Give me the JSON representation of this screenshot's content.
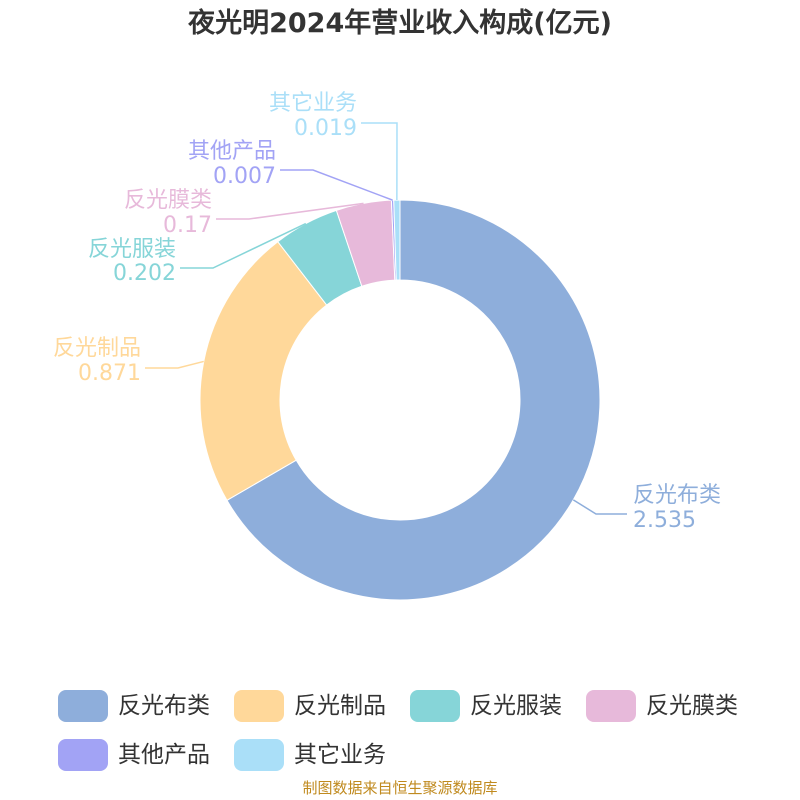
{
  "title": "夜光明2024年营业收入构成(亿元)",
  "source_note": "制图数据来自恒生聚源数据库",
  "chart_data": {
    "type": "pie",
    "title": "夜光明2024年营业收入构成(亿元)",
    "donut": true,
    "legend_position": "bottom",
    "series": [
      {
        "name": "反光布类",
        "value": 2.535,
        "label": "2.535",
        "color": "#8eaedb"
      },
      {
        "name": "反光制品",
        "value": 0.871,
        "label": "0.871",
        "color": "#ffd89a"
      },
      {
        "name": "反光服装",
        "value": 0.202,
        "label": "0.202",
        "color": "#86d5d8"
      },
      {
        "name": "反光膜类",
        "value": 0.17,
        "label": "0.17",
        "color": "#e7b9da"
      },
      {
        "name": "其他产品",
        "value": 0.007,
        "label": "0.007",
        "color": "#a2a3f5"
      },
      {
        "name": "其它业务",
        "value": 0.019,
        "label": "0.019",
        "color": "#aadff8"
      }
    ]
  }
}
